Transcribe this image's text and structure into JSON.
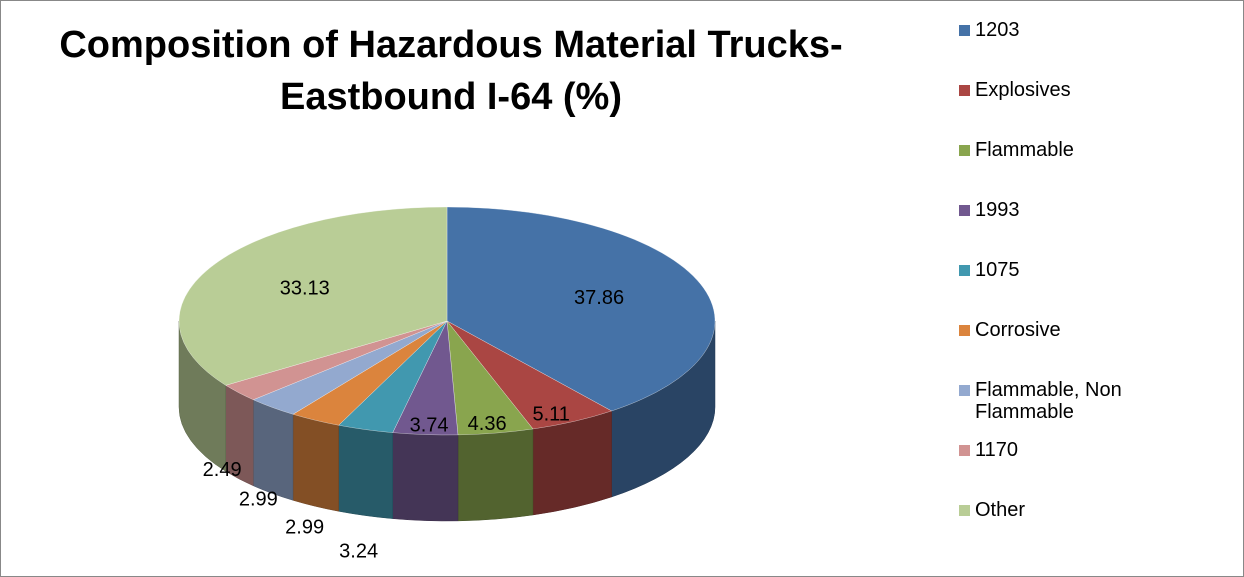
{
  "chart_data": {
    "type": "pie3d",
    "title": "Composition of Hazardous Material Trucks- Eastbound I-64 (%)",
    "categories": [
      "1203",
      "Explosives",
      "Flammable",
      "1993",
      "1075",
      "Corrosive",
      "Flammable, Non Flammable",
      "1170",
      "Other"
    ],
    "values": [
      37.86,
      5.11,
      4.36,
      3.74,
      3.24,
      2.99,
      2.99,
      2.49,
      33.13
    ],
    "colors": [
      "#4572a7",
      "#aa4643",
      "#89a54e",
      "#71588f",
      "#4198af",
      "#db843d",
      "#93a9cf",
      "#d19392",
      "#b9cd96"
    ],
    "legend": "right"
  }
}
